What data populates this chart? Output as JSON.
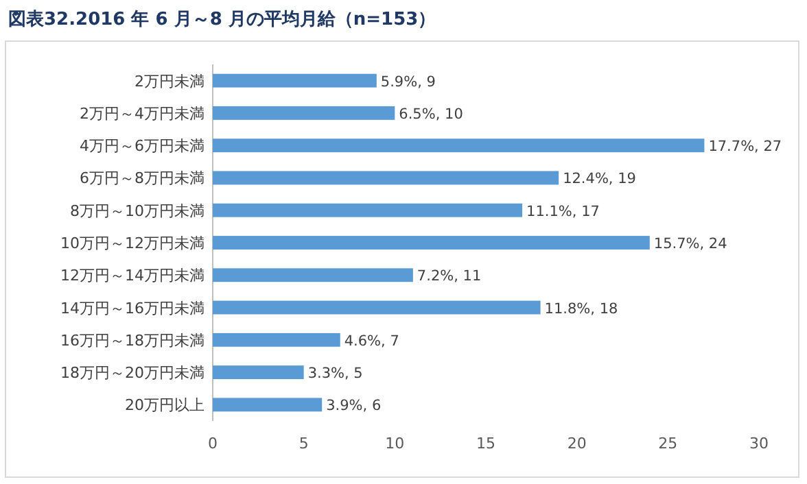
{
  "chart_data": {
    "type": "bar",
    "orientation": "horizontal",
    "title": "図表32.2016 年 6 月～8 月の平均月給（n=153）",
    "categories": [
      "2万円未満",
      "2万円～4万円未満",
      "4万円～6万円未満",
      "6万円～8万円未満",
      "8万円～10万円未満",
      "10万円～12万円未満",
      "12万円～14万円未満",
      "14万円～16万円未満",
      "16万円～18万円未満",
      "18万円～20万円未満",
      "20万円以上"
    ],
    "values": [
      9,
      10,
      27,
      19,
      17,
      24,
      11,
      18,
      7,
      5,
      6
    ],
    "value_labels": [
      "5.9%, 9",
      "6.5%, 10",
      "17.7%, 27",
      "12.4%, 19",
      "11.1%, 17",
      "15.7%, 24",
      "7.2%, 11",
      "11.8%, 18",
      "4.6%, 7",
      "3.3%, 5",
      "3.9%, 6"
    ],
    "color": "#5b9bd5",
    "xlim": [
      0,
      30
    ],
    "xticks": [
      0,
      5,
      10,
      15,
      20,
      25,
      30
    ],
    "grid": false
  }
}
